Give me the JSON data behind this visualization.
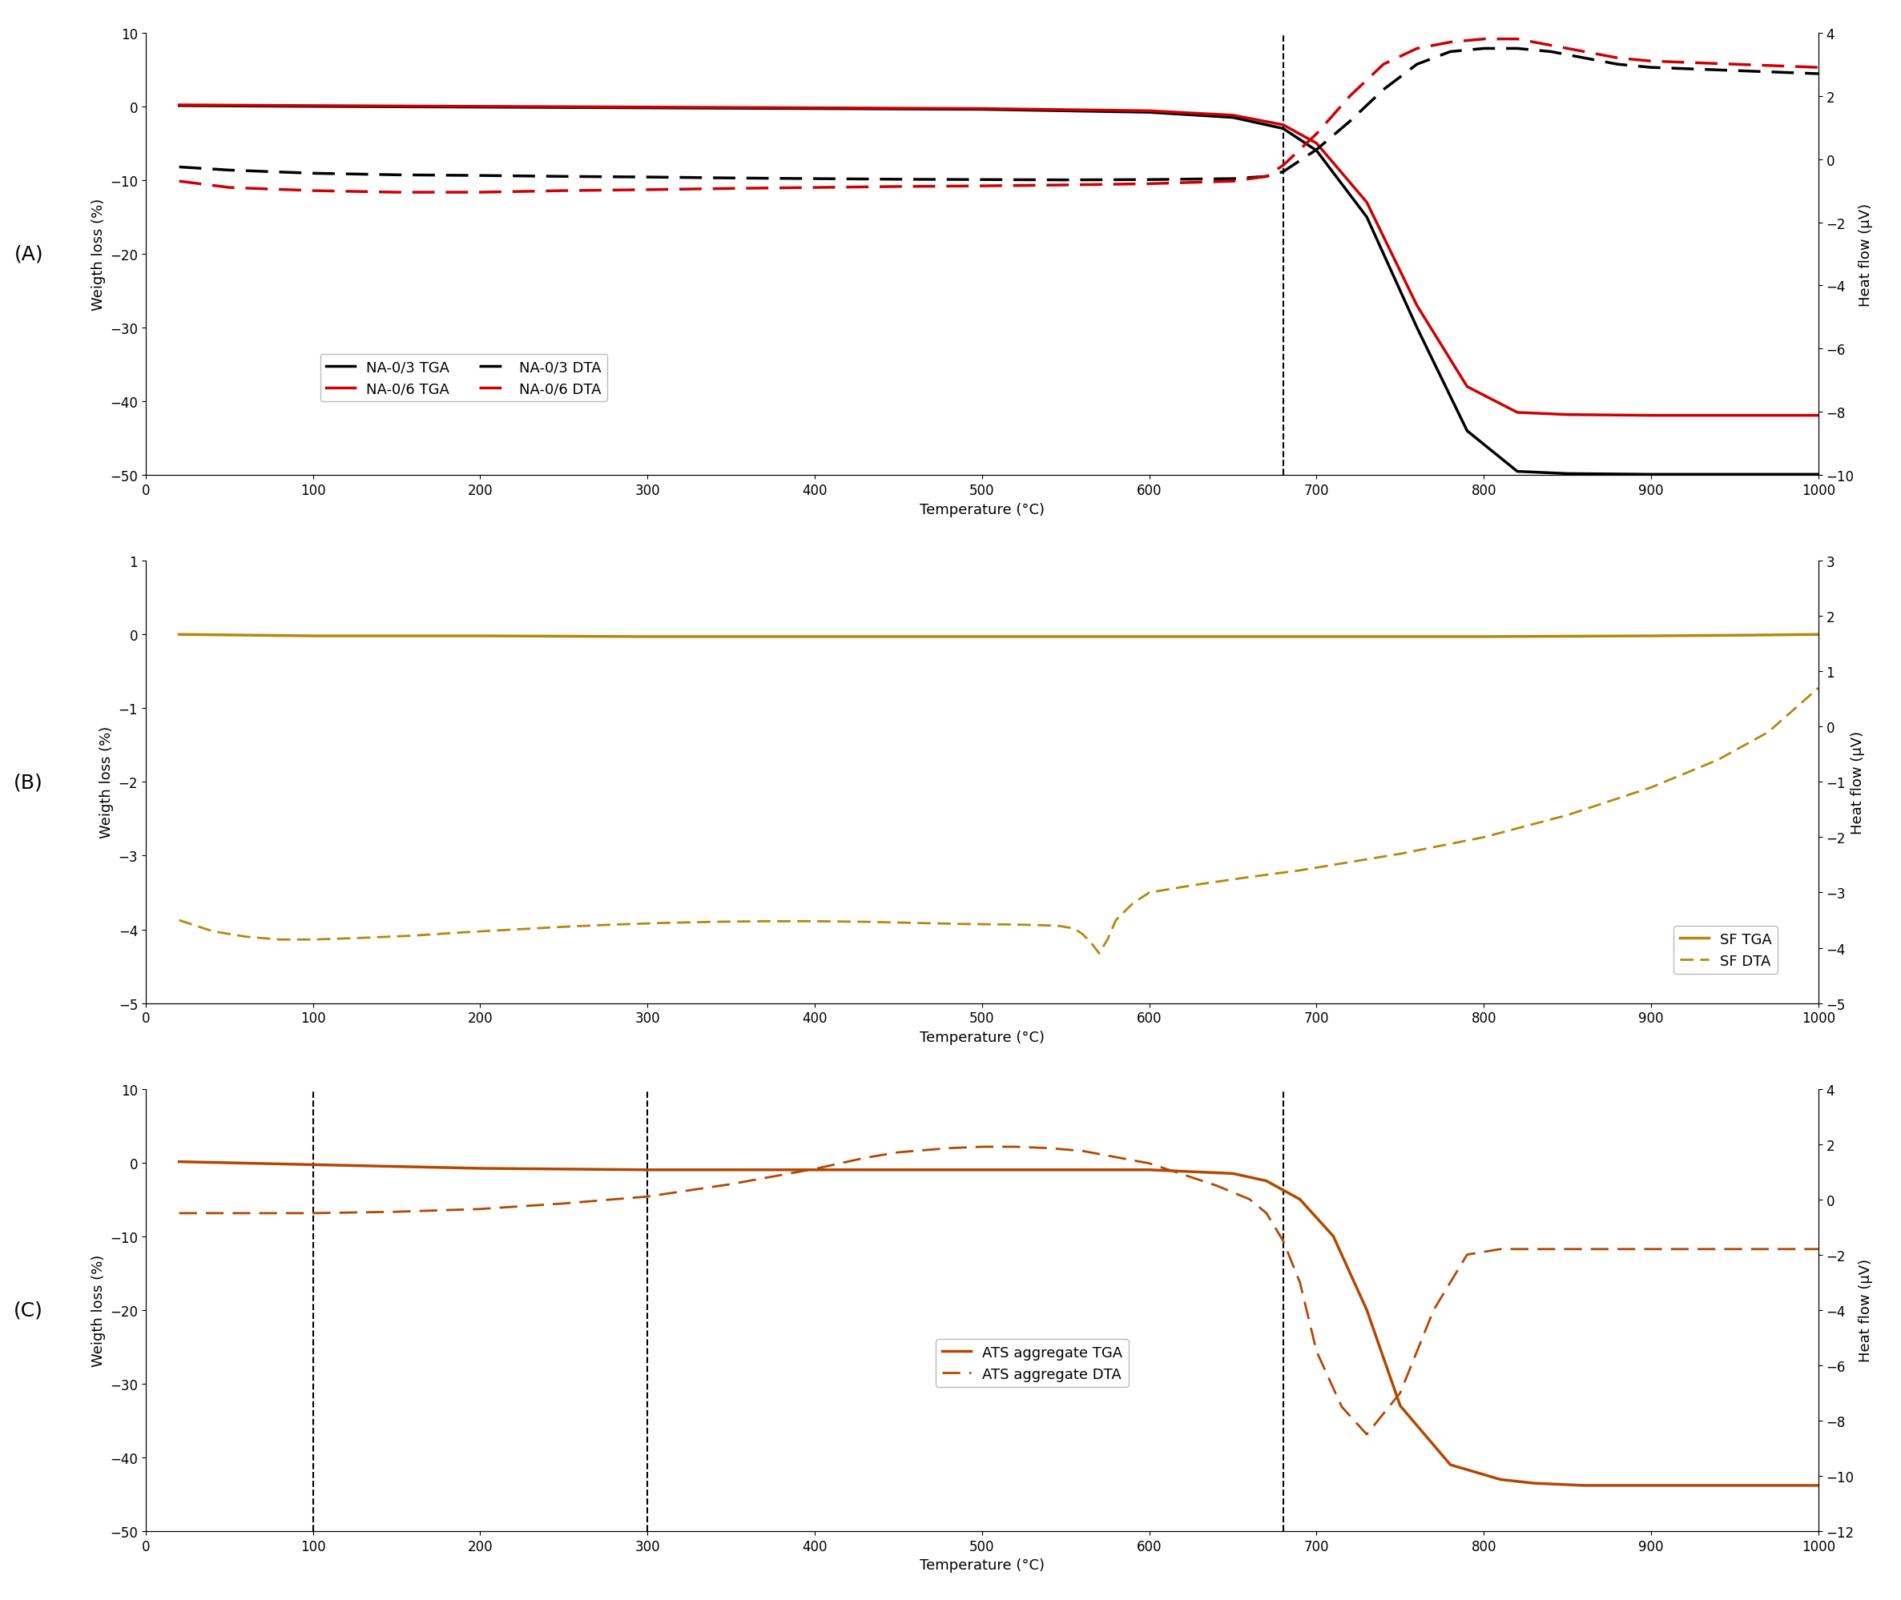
{
  "panel_A": {
    "tga_na03": {
      "x": [
        20,
        100,
        200,
        300,
        400,
        500,
        600,
        650,
        680,
        700,
        730,
        760,
        790,
        820,
        850,
        900,
        950,
        1000
      ],
      "y": [
        0.1,
        0.0,
        -0.1,
        -0.2,
        -0.3,
        -0.4,
        -0.8,
        -1.5,
        -3.0,
        -6.0,
        -15.0,
        -30.0,
        -44.0,
        -49.5,
        -49.8,
        -49.9,
        -49.9,
        -49.9
      ]
    },
    "tga_na06": {
      "x": [
        20,
        100,
        200,
        300,
        400,
        500,
        600,
        650,
        680,
        700,
        730,
        760,
        790,
        820,
        850,
        900,
        950,
        1000
      ],
      "y": [
        0.2,
        0.1,
        0.0,
        -0.1,
        -0.2,
        -0.3,
        -0.6,
        -1.2,
        -2.5,
        -5.0,
        -13.0,
        -27.0,
        -38.0,
        -41.5,
        -41.8,
        -41.9,
        -41.9,
        -41.9
      ]
    },
    "dta_na03": {
      "x": [
        20,
        50,
        100,
        150,
        200,
        250,
        300,
        350,
        400,
        450,
        500,
        550,
        600,
        650,
        670,
        680,
        700,
        720,
        740,
        760,
        780,
        800,
        820,
        840,
        860,
        880,
        900,
        950,
        1000
      ],
      "y": [
        -0.25,
        -0.35,
        -0.45,
        -0.5,
        -0.52,
        -0.55,
        -0.57,
        -0.6,
        -0.62,
        -0.64,
        -0.65,
        -0.66,
        -0.65,
        -0.62,
        -0.55,
        -0.4,
        0.3,
        1.2,
        2.2,
        3.0,
        3.4,
        3.5,
        3.5,
        3.4,
        3.2,
        3.0,
        2.9,
        2.8,
        2.7
      ]
    },
    "dta_na06": {
      "x": [
        20,
        50,
        100,
        150,
        200,
        250,
        300,
        350,
        400,
        450,
        500,
        550,
        600,
        650,
        670,
        680,
        700,
        720,
        740,
        760,
        780,
        800,
        820,
        840,
        860,
        880,
        900,
        950,
        1000
      ],
      "y": [
        -0.7,
        -0.9,
        -1.0,
        -1.05,
        -1.05,
        -1.0,
        -0.97,
        -0.93,
        -0.9,
        -0.87,
        -0.85,
        -0.82,
        -0.78,
        -0.7,
        -0.55,
        -0.2,
        0.8,
        2.0,
        3.0,
        3.5,
        3.7,
        3.8,
        3.8,
        3.6,
        3.4,
        3.2,
        3.1,
        3.0,
        2.9
      ]
    },
    "vline_x": 680,
    "ylim_left": [
      -50,
      10
    ],
    "ylim_right": [
      -10,
      4
    ],
    "yticks_left": [
      -50,
      -40,
      -30,
      -20,
      -10,
      0,
      10
    ],
    "yticks_right": [
      -10,
      -8,
      -6,
      -4,
      -2,
      0,
      2,
      4
    ],
    "xlabel": "Temperature (°C)",
    "ylabel_left": "Weigth loss (%)",
    "ylabel_right": "Heat flow (μV)",
    "label_A": "(A)",
    "color_na03": "#000000",
    "color_na06": "#cc0000"
  },
  "panel_B": {
    "tga_sf": {
      "x": [
        20,
        100,
        200,
        300,
        400,
        500,
        580,
        600,
        700,
        800,
        900,
        960,
        1000
      ],
      "y": [
        0.0,
        -0.02,
        -0.02,
        -0.03,
        -0.03,
        -0.03,
        -0.03,
        -0.03,
        -0.03,
        -0.03,
        -0.02,
        -0.01,
        0.0
      ]
    },
    "dta_sf": {
      "x": [
        20,
        40,
        60,
        80,
        100,
        130,
        160,
        190,
        220,
        250,
        280,
        310,
        340,
        370,
        400,
        430,
        460,
        490,
        520,
        545,
        555,
        560,
        565,
        570,
        575,
        580,
        590,
        600,
        630,
        660,
        690,
        720,
        750,
        800,
        850,
        900,
        940,
        970,
        1000
      ],
      "y": [
        -3.5,
        -3.7,
        -3.8,
        -3.85,
        -3.85,
        -3.82,
        -3.78,
        -3.72,
        -3.67,
        -3.62,
        -3.58,
        -3.55,
        -3.53,
        -3.52,
        -3.52,
        -3.53,
        -3.55,
        -3.57,
        -3.58,
        -3.6,
        -3.65,
        -3.75,
        -3.9,
        -4.1,
        -3.85,
        -3.5,
        -3.2,
        -3.0,
        -2.85,
        -2.72,
        -2.6,
        -2.45,
        -2.3,
        -2.0,
        -1.6,
        -1.1,
        -0.6,
        -0.1,
        0.7
      ]
    },
    "ylim_left": [
      -5,
      1
    ],
    "ylim_right": [
      -5,
      3
    ],
    "yticks_left": [
      -5,
      -4,
      -3,
      -2,
      -1,
      0,
      1
    ],
    "yticks_right": [
      -5,
      -4,
      -3,
      -2,
      -1,
      0,
      1,
      2,
      3
    ],
    "xlabel": "Temperature (°C)",
    "ylabel_left": "Weigth loss (%)",
    "ylabel_right": "Heat flow (μV)",
    "label_B": "(B)",
    "color_sf": "#b8860b"
  },
  "panel_C": {
    "tga_ats": {
      "x": [
        20,
        100,
        200,
        300,
        400,
        500,
        600,
        650,
        670,
        690,
        710,
        730,
        750,
        780,
        810,
        830,
        860,
        900,
        950,
        1000
      ],
      "y": [
        0.1,
        -0.3,
        -0.8,
        -1.0,
        -1.0,
        -1.0,
        -1.0,
        -1.5,
        -2.5,
        -5.0,
        -10.0,
        -20.0,
        -33.0,
        -41.0,
        -43.0,
        -43.5,
        -43.8,
        -43.8,
        -43.8,
        -43.8
      ]
    },
    "dta_ats": {
      "x": [
        20,
        50,
        100,
        150,
        200,
        250,
        300,
        350,
        400,
        430,
        450,
        480,
        500,
        520,
        540,
        560,
        600,
        640,
        660,
        670,
        680,
        690,
        700,
        715,
        730,
        750,
        770,
        790,
        810,
        825,
        840,
        860,
        900,
        950,
        1000
      ],
      "y": [
        -0.5,
        -0.5,
        -0.5,
        -0.45,
        -0.35,
        -0.15,
        0.1,
        0.55,
        1.1,
        1.5,
        1.7,
        1.85,
        1.9,
        1.9,
        1.85,
        1.75,
        1.3,
        0.5,
        0.0,
        -0.5,
        -1.5,
        -3.0,
        -5.5,
        -7.5,
        -8.5,
        -7.0,
        -4.0,
        -2.0,
        -1.8,
        -1.8,
        -1.8,
        -1.8,
        -1.8,
        -1.8,
        -1.8
      ]
    },
    "vlines_x": [
      100,
      300,
      680
    ],
    "ylim_left": [
      -50,
      10
    ],
    "ylim_right": [
      -12,
      4
    ],
    "yticks_left": [
      -50,
      -40,
      -30,
      -20,
      -10,
      0,
      10
    ],
    "yticks_right": [
      -12,
      -10,
      -8,
      -6,
      -4,
      -2,
      0,
      2,
      4
    ],
    "xlabel": "Temperature (°C)",
    "ylabel_left": "Weigth loss (%)",
    "ylabel_right": "Heat flow (μV)",
    "label_C": "(C)",
    "color_ats": "#b34700"
  },
  "xlim": [
    0,
    1000
  ],
  "xticks": [
    0,
    100,
    200,
    300,
    400,
    500,
    600,
    700,
    800,
    900,
    1000
  ],
  "background_color": "#ffffff",
  "fontsize": 13,
  "label_fontsize": 18,
  "tick_fontsize": 12
}
